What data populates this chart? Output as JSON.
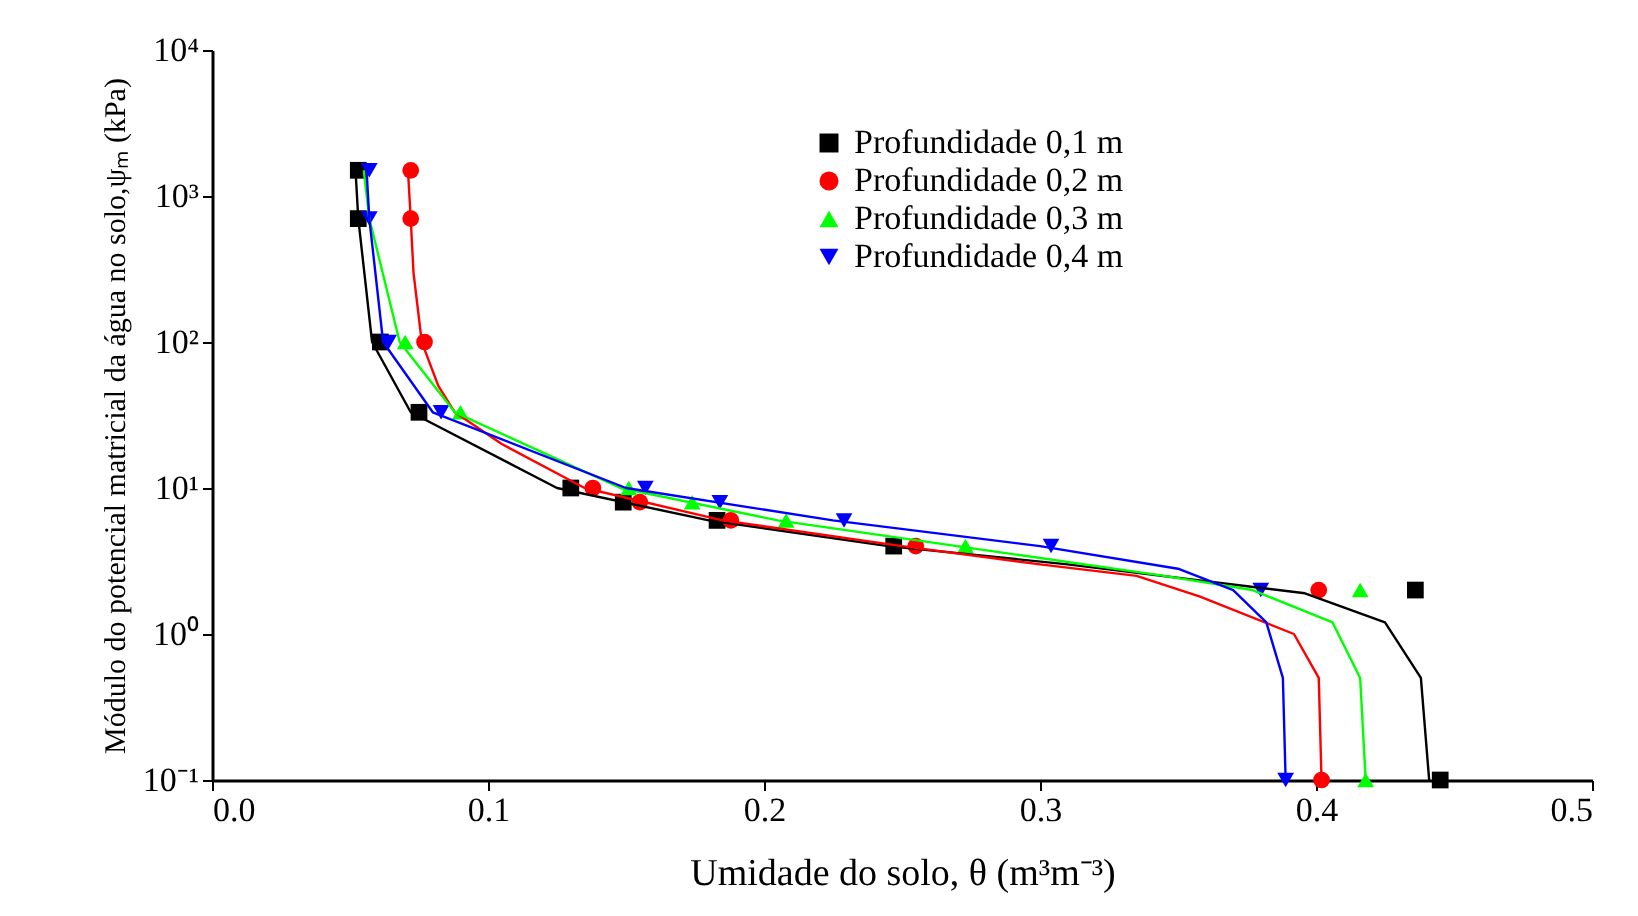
{
  "chart_data": {
    "type": "scatter",
    "xlabel": "Umidade do solo, θ (m³m⁻³)",
    "ylabel": "Módulo do potencial matricial da água no solo,ψₘ (kPa)",
    "xlim": [
      0.0,
      0.5
    ],
    "xticks": [
      {
        "value": 0,
        "label": "0.0"
      },
      0.1,
      0.2,
      0.3,
      0.4,
      0.5
    ],
    "ylim": [
      0.1,
      10000
    ],
    "yticks": [
      {
        "value": 0.1,
        "label": "10⁻¹"
      },
      {
        "value": 1,
        "label": "10⁰"
      },
      {
        "value": 10,
        "label": "10¹"
      },
      {
        "value": 100,
        "label": "10²"
      },
      {
        "value": 1000,
        "label": "10³"
      },
      {
        "value": 10000,
        "label": "10⁴"
      }
    ],
    "log": "y",
    "grid": false,
    "legend": "top right",
    "series": [
      {
        "name": "Profundidade 0,1 m",
        "color": "#000000",
        "marker": "square",
        "x": [
          0.053,
          0.053,
          0.061,
          0.075,
          0.13,
          0.149,
          0.183,
          0.247,
          0.436,
          0.445
        ],
        "values": [
          1500,
          700,
          100,
          33,
          10,
          8,
          6,
          4,
          2,
          0.1
        ]
      },
      {
        "name": "Profundidade 0,2 m",
        "color": "#ff0000",
        "marker": "circle",
        "x": [
          0.072,
          0.072,
          0.077,
          null,
          0.138,
          0.155,
          0.188,
          0.255,
          0.401,
          0.402
        ],
        "values": [
          1500,
          700,
          100,
          null,
          10,
          8,
          6,
          4,
          2,
          0.1
        ]
      },
      {
        "name": "Profundidade 0,3 m",
        "color": "#00ff00",
        "marker": "triangle",
        "x": [
          null,
          null,
          0.07,
          0.09,
          0.151,
          0.174,
          0.208,
          0.273,
          0.416,
          0.418
        ],
        "values": [
          null,
          null,
          100,
          33,
          10,
          8,
          6,
          4,
          2,
          0.1
        ]
      },
      {
        "name": "Profundidade 0,4 m",
        "color": "#0000ff",
        "marker": "triangle-down",
        "x": [
          0.057,
          0.057,
          0.064,
          0.083,
          0.157,
          0.184,
          0.229,
          0.304,
          0.38,
          0.389
        ],
        "values": [
          1500,
          700,
          100,
          33,
          10,
          8,
          6,
          4,
          2,
          0.1
        ]
      },
      {
        "type": "line",
        "color": "#000000",
        "x": [
          0.052,
          0.053,
          0.058,
          0.072,
          0.125,
          0.18,
          0.245,
          0.31,
          0.396,
          0.425,
          0.438,
          0.441
        ],
        "values": [
          1500,
          700,
          100,
          33,
          10,
          6,
          4,
          3,
          1.9,
          1.2,
          0.5,
          0.1
        ]
      },
      {
        "type": "line",
        "color": "#ff0000",
        "x": [
          0.071,
          0.072,
          0.073,
          0.076,
          0.082,
          0.088,
          0.105,
          0.135,
          0.185,
          0.25,
          0.3,
          0.335,
          0.358,
          0.392,
          0.401,
          0.402
        ],
        "values": [
          1500,
          700,
          300,
          100,
          50,
          33,
          20,
          10,
          6,
          4,
          3,
          2.5,
          1.8,
          1.0,
          0.5,
          0.1
        ]
      },
      {
        "type": "line",
        "color": "#00ff00",
        "x": [
          0.055,
          0.057,
          0.068,
          0.088,
          0.148,
          0.205,
          0.27,
          0.345,
          0.377,
          0.406,
          0.416,
          0.418
        ],
        "values": [
          1500,
          700,
          100,
          33,
          10,
          6,
          4,
          2.5,
          2,
          1.2,
          0.5,
          0.1
        ]
      },
      {
        "type": "line",
        "color": "#0000ff",
        "x": [
          0.056,
          0.057,
          0.062,
          0.08,
          0.15,
          0.225,
          0.3,
          0.35,
          0.37,
          0.382,
          0.388,
          0.389
        ],
        "values": [
          1500,
          700,
          100,
          33,
          10,
          6,
          4,
          2.8,
          2,
          1.2,
          0.5,
          0.1
        ]
      }
    ]
  }
}
